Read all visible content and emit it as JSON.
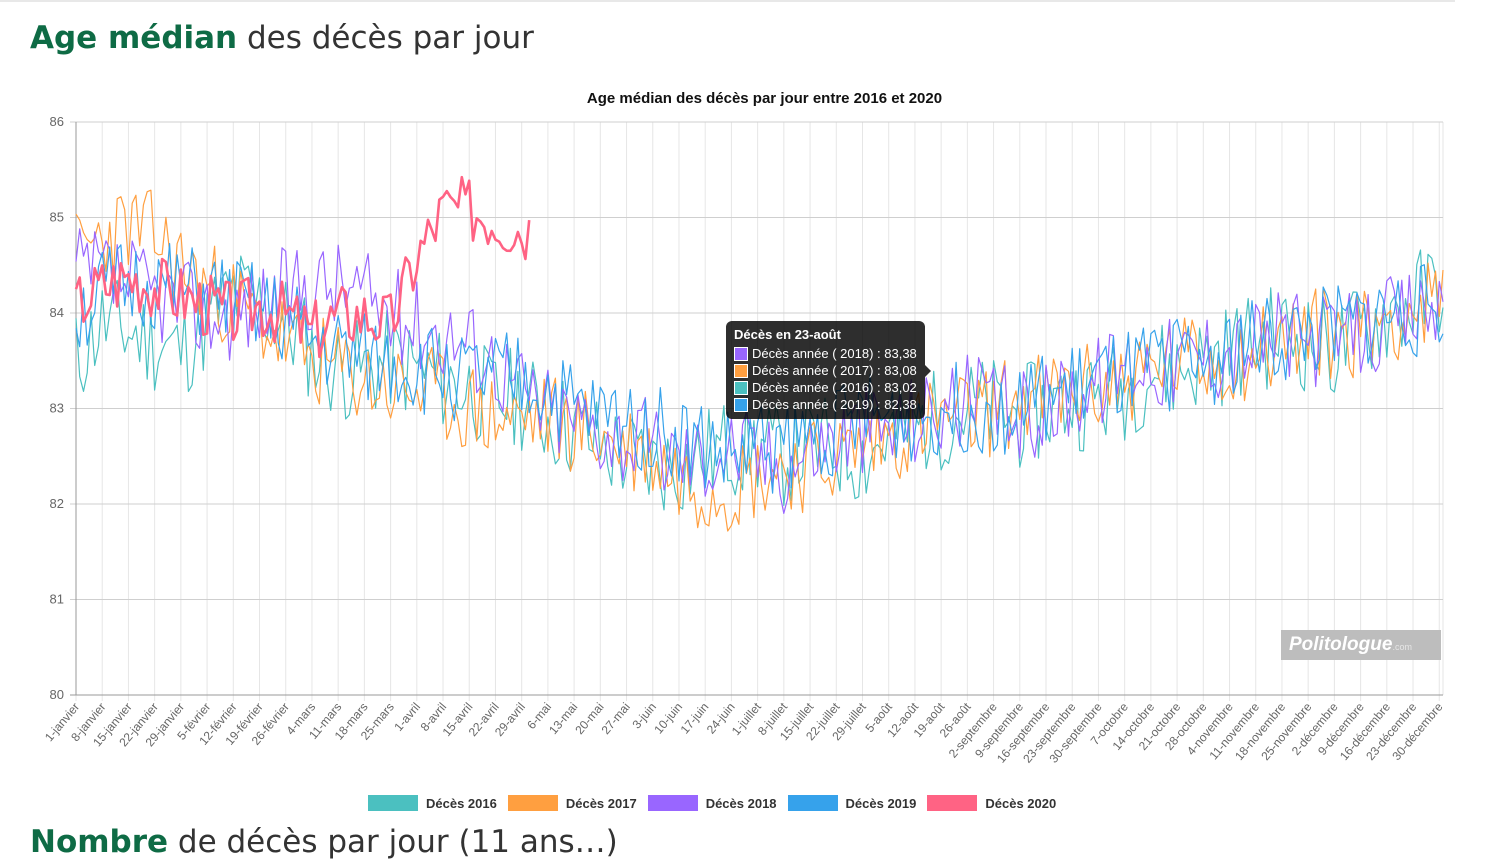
{
  "page": {
    "title_accent": "Age médian",
    "title_rest": " des décès par jour",
    "next_title_accent": "Nombre",
    "next_title_rest": " de décès par jour (11 ans…)"
  },
  "watermark": {
    "brand": "Politologue",
    "suffix": ".com"
  },
  "tooltip": {
    "title": "Décès en 23-août",
    "rows": [
      {
        "text": "Décès année ( 2018) : 83,38",
        "color": "#9966ff"
      },
      {
        "text": "Décès année ( 2017) : 83,08",
        "color": "#ff9f40"
      },
      {
        "text": "Décès année ( 2016) : 83,02",
        "color": "#4bc0c0"
      },
      {
        "text": "Décès année ( 2019) : 82,38",
        "color": "#36a2eb"
      }
    ]
  },
  "chart_data": {
    "type": "line",
    "title": "Age médian des décès par jour entre 2016 et 2020",
    "ylim": [
      80,
      86
    ],
    "yticks": [
      "80",
      "81",
      "82",
      "83",
      "84",
      "85",
      "86"
    ],
    "grid": true,
    "legend_position": "bottom",
    "x_tick_labels": [
      "1-janvier",
      "8-janvier",
      "15-janvier",
      "22-janvier",
      "29-janvier",
      "5-février",
      "12-février",
      "19-février",
      "26-février",
      "4-mars",
      "11-mars",
      "18-mars",
      "25-mars",
      "1-avril",
      "8-avril",
      "15-avril",
      "22-avril",
      "29-avril",
      "6-mai",
      "13-mai",
      "20-mai",
      "27-mai",
      "3-juin",
      "10-juin",
      "17-juin",
      "24-juin",
      "1-juillet",
      "8-juillet",
      "15-juillet",
      "22-juillet",
      "29-juillet",
      "5-août",
      "12-août",
      "19-août",
      "26-août",
      "2-septembre",
      "9-septembre",
      "16-septembre",
      "23-septembre",
      "30-septembre",
      "7-octobre",
      "14-octobre",
      "21-octobre",
      "28-octobre",
      "4-novembre",
      "11-novembre",
      "18-novembre",
      "25-novembre",
      "2-décembre",
      "9-décembre",
      "16-décembre",
      "23-décembre",
      "30-décembre"
    ],
    "series": [
      {
        "name": "Décès 2016",
        "color": "#4bc0c0",
        "weekly": [
          83.5,
          83.9,
          83.8,
          83.7,
          83.6,
          83.9,
          84.2,
          84.1,
          83.9,
          83.6,
          83.4,
          83.4,
          83.5,
          83.4,
          83.3,
          83.2,
          83.1,
          83.1,
          82.9,
          82.8,
          82.6,
          82.5,
          82.4,
          82.4,
          82.5,
          82.6,
          82.6,
          82.5,
          82.6,
          82.6,
          82.5,
          82.7,
          82.8,
          82.9,
          83.0,
          83.0,
          82.9,
          83.0,
          83.1,
          83.1,
          83.2,
          83.4,
          83.4,
          83.5,
          83.6,
          83.7,
          83.8,
          83.7,
          83.6,
          83.8,
          84.0,
          84.1,
          84.3
        ],
        "amp": 0.55,
        "seed": 11,
        "days": 366
      },
      {
        "name": "Décès 2017",
        "color": "#ff9f40",
        "weekly": [
          84.6,
          84.8,
          84.9,
          84.8,
          84.5,
          84.3,
          84.1,
          83.9,
          83.7,
          83.5,
          83.4,
          83.3,
          83.2,
          83.2,
          83.1,
          83.0,
          82.9,
          82.9,
          82.9,
          82.8,
          82.7,
          82.6,
          82.5,
          82.3,
          82.2,
          82.2,
          82.3,
          82.4,
          82.4,
          82.5,
          82.6,
          82.7,
          82.8,
          82.9,
          82.9,
          83.0,
          83.1,
          83.1,
          83.2,
          83.2,
          83.3,
          83.4,
          83.5,
          83.5,
          83.5,
          83.6,
          83.7,
          83.8,
          83.8,
          83.8,
          84.0,
          84.0,
          84.1
        ],
        "amp": 0.5,
        "seed": 23,
        "days": 366
      },
      {
        "name": "Décès 2018",
        "color": "#9966ff",
        "weekly": [
          84.4,
          84.4,
          84.3,
          84.2,
          84.1,
          84.0,
          84.0,
          84.1,
          84.2,
          84.3,
          84.3,
          84.2,
          84.0,
          83.9,
          83.8,
          83.7,
          83.5,
          83.2,
          83.0,
          82.9,
          82.8,
          82.7,
          82.6,
          82.5,
          82.5,
          82.6,
          82.5,
          82.4,
          82.6,
          82.7,
          82.8,
          82.8,
          82.9,
          83.0,
          83.1,
          83.0,
          82.9,
          83.0,
          83.2,
          83.3,
          83.5,
          83.5,
          83.5,
          83.6,
          83.6,
          83.7,
          83.8,
          83.7,
          83.7,
          83.8,
          83.9,
          84.0,
          84.1
        ],
        "amp": 0.5,
        "seed": 37,
        "days": 366
      },
      {
        "name": "Décès 2019",
        "color": "#36a2eb",
        "weekly": [
          84.0,
          84.2,
          84.3,
          84.3,
          84.2,
          84.2,
          84.1,
          84.0,
          83.9,
          83.7,
          83.6,
          83.5,
          83.5,
          83.4,
          83.4,
          83.3,
          83.3,
          83.3,
          83.2,
          83.0,
          82.9,
          82.9,
          82.8,
          82.7,
          82.6,
          82.5,
          82.6,
          82.6,
          82.7,
          82.8,
          82.9,
          82.9,
          82.9,
          83.0,
          83.0,
          83.0,
          83.0,
          83.1,
          83.2,
          83.3,
          83.3,
          83.4,
          83.5,
          83.5,
          83.6,
          83.7,
          83.7,
          83.8,
          83.8,
          83.9,
          84.0,
          84.0,
          84.1
        ],
        "amp": 0.5,
        "seed": 51,
        "days": 366
      },
      {
        "name": "Décès 2020",
        "color": "#ff6384",
        "weekly": [
          84.1,
          84.3,
          84.4,
          84.3,
          84.2,
          84.1,
          84.0,
          84.1,
          84.0,
          83.8,
          84.0,
          84.0,
          83.9,
          84.6,
          85.1,
          85.1,
          85.0,
          84.9
        ],
        "amp": 0.35,
        "seed": 67,
        "days": 122
      }
    ]
  }
}
